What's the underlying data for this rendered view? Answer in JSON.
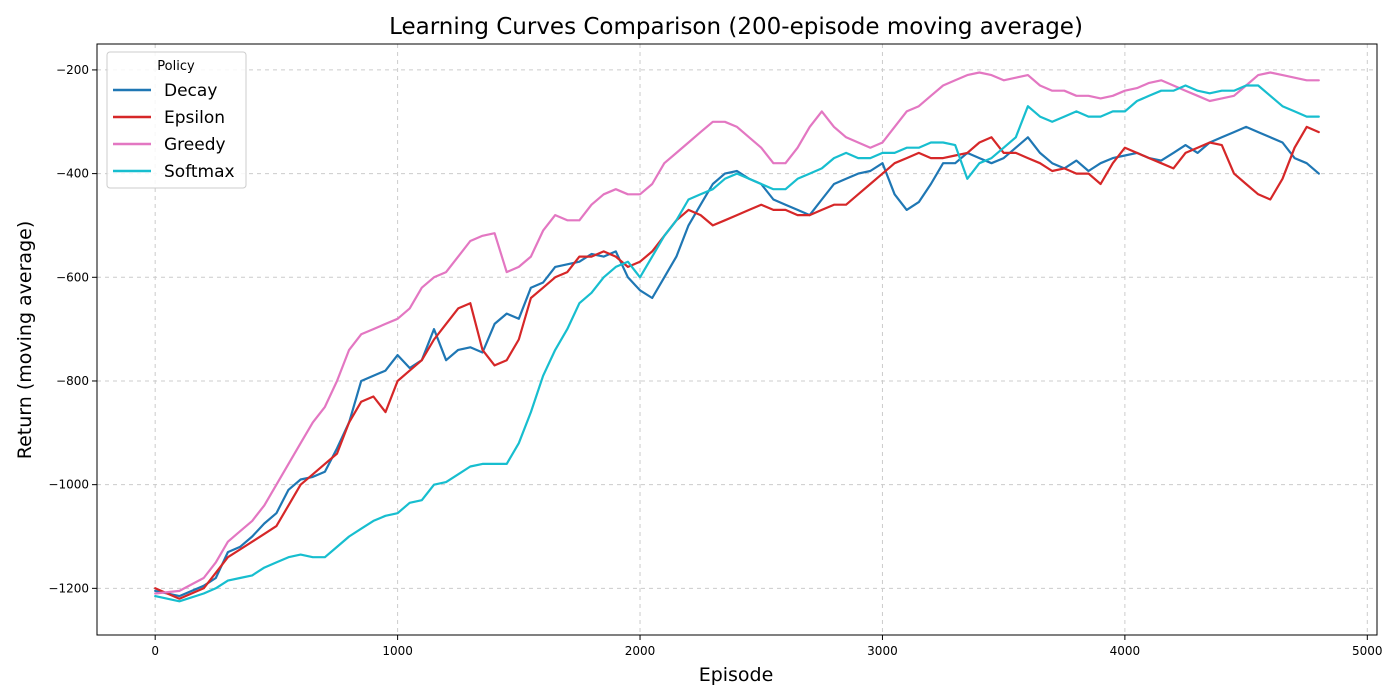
{
  "chart_data": {
    "type": "line",
    "title": "Learning Curves Comparison (200-episode moving average)",
    "xlabel": "Episode",
    "ylabel": "Return (moving average)",
    "xlim": [
      -240,
      5040
    ],
    "ylim": [
      -1290,
      -150
    ],
    "xticks": [
      0,
      1000,
      2000,
      3000,
      4000,
      5000
    ],
    "xtick_labels": [
      "0",
      "1000",
      "2000",
      "3000",
      "4000",
      "5000"
    ],
    "yticks": [
      -1200,
      -1000,
      -800,
      -600,
      -400,
      -200
    ],
    "ytick_labels": [
      "−1200",
      "−1000",
      "−800",
      "−600",
      "−400",
      "−200"
    ],
    "grid": true,
    "legend": {
      "title": "Policy",
      "position": "top-left"
    },
    "series": [
      {
        "name": "Decay",
        "color": "#1f77b4",
        "x": [
          0,
          100,
          200,
          250,
          300,
          350,
          400,
          450,
          500,
          550,
          600,
          650,
          700,
          750,
          800,
          850,
          900,
          950,
          1000,
          1050,
          1100,
          1150,
          1200,
          1250,
          1300,
          1350,
          1400,
          1450,
          1500,
          1550,
          1600,
          1650,
          1700,
          1750,
          1800,
          1850,
          1900,
          1950,
          2000,
          2050,
          2100,
          2150,
          2200,
          2250,
          2300,
          2350,
          2400,
          2450,
          2500,
          2550,
          2600,
          2650,
          2700,
          2750,
          2800,
          2850,
          2900,
          2950,
          3000,
          3050,
          3100,
          3150,
          3200,
          3250,
          3300,
          3350,
          3400,
          3450,
          3500,
          3550,
          3600,
          3650,
          3700,
          3750,
          3800,
          3850,
          3900,
          3950,
          4000,
          4050,
          4100,
          4150,
          4200,
          4250,
          4300,
          4350,
          4400,
          4450,
          4500,
          4550,
          4600,
          4650,
          4700,
          4750,
          4800
        ],
        "y": [
          -1205,
          -1215,
          -1195,
          -1180,
          -1130,
          -1120,
          -1100,
          -1075,
          -1055,
          -1010,
          -990,
          -985,
          -975,
          -930,
          -880,
          -800,
          -790,
          -780,
          -750,
          -775,
          -760,
          -700,
          -760,
          -740,
          -735,
          -745,
          -690,
          -670,
          -680,
          -620,
          -610,
          -580,
          -575,
          -570,
          -555,
          -560,
          -550,
          -600,
          -625,
          -640,
          -600,
          -560,
          -500,
          -460,
          -420,
          -400,
          -395,
          -410,
          -420,
          -450,
          -460,
          -470,
          -480,
          -450,
          -420,
          -410,
          -400,
          -395,
          -380,
          -440,
          -470,
          -455,
          -420,
          -380,
          -380,
          -360,
          -370,
          -380,
          -370,
          -350,
          -330,
          -360,
          -380,
          -390,
          -375,
          -395,
          -380,
          -370,
          -365,
          -360,
          -370,
          -375,
          -360,
          -345,
          -360,
          -340,
          -330,
          -320,
          -310,
          -320,
          -330,
          -340,
          -370,
          -380,
          -400
        ]
      },
      {
        "name": "Epsilon",
        "color": "#d62728",
        "x": [
          0,
          100,
          200,
          250,
          300,
          350,
          400,
          450,
          500,
          550,
          600,
          650,
          700,
          750,
          800,
          850,
          900,
          950,
          1000,
          1050,
          1100,
          1150,
          1200,
          1250,
          1300,
          1350,
          1400,
          1450,
          1500,
          1550,
          1600,
          1650,
          1700,
          1750,
          1800,
          1850,
          1900,
          1950,
          2000,
          2050,
          2100,
          2150,
          2200,
          2250,
          2300,
          2350,
          2400,
          2450,
          2500,
          2550,
          2600,
          2650,
          2700,
          2750,
          2800,
          2850,
          2900,
          2950,
          3000,
          3050,
          3100,
          3150,
          3200,
          3250,
          3300,
          3350,
          3400,
          3450,
          3500,
          3550,
          3600,
          3650,
          3700,
          3750,
          3800,
          3850,
          3900,
          3950,
          4000,
          4050,
          4100,
          4150,
          4200,
          4250,
          4300,
          4350,
          4400,
          4450,
          4500,
          4550,
          4600,
          4650,
          4700,
          4750,
          4800
        ],
        "y": [
          -1200,
          -1220,
          -1200,
          -1170,
          -1140,
          -1125,
          -1110,
          -1095,
          -1080,
          -1040,
          -1000,
          -980,
          -960,
          -940,
          -880,
          -840,
          -830,
          -860,
          -800,
          -780,
          -760,
          -720,
          -690,
          -660,
          -650,
          -740,
          -770,
          -760,
          -720,
          -640,
          -620,
          -600,
          -590,
          -560,
          -560,
          -550,
          -560,
          -580,
          -570,
          -550,
          -520,
          -490,
          -470,
          -480,
          -500,
          -490,
          -480,
          -470,
          -460,
          -470,
          -470,
          -480,
          -480,
          -470,
          -460,
          -460,
          -440,
          -420,
          -400,
          -380,
          -370,
          -360,
          -370,
          -370,
          -365,
          -360,
          -340,
          -330,
          -360,
          -360,
          -370,
          -380,
          -395,
          -390,
          -400,
          -400,
          -420,
          -380,
          -350,
          -360,
          -370,
          -380,
          -390,
          -360,
          -350,
          -340,
          -345,
          -400,
          -420,
          -440,
          -450,
          -410,
          -350,
          -310,
          -320
        ]
      },
      {
        "name": "Greedy",
        "color": "#e377c2",
        "x": [
          0,
          100,
          200,
          250,
          300,
          350,
          400,
          450,
          500,
          550,
          600,
          650,
          700,
          750,
          800,
          850,
          900,
          950,
          1000,
          1050,
          1100,
          1150,
          1200,
          1250,
          1300,
          1350,
          1400,
          1450,
          1500,
          1550,
          1600,
          1650,
          1700,
          1750,
          1800,
          1850,
          1900,
          1950,
          2000,
          2050,
          2100,
          2150,
          2200,
          2250,
          2300,
          2350,
          2400,
          2450,
          2500,
          2550,
          2600,
          2650,
          2700,
          2750,
          2800,
          2850,
          2900,
          2950,
          3000,
          3050,
          3100,
          3150,
          3200,
          3250,
          3300,
          3350,
          3400,
          3450,
          3500,
          3550,
          3600,
          3650,
          3700,
          3750,
          3800,
          3850,
          3900,
          3950,
          4000,
          4050,
          4100,
          4150,
          4200,
          4250,
          4300,
          4350,
          4400,
          4450,
          4500,
          4550,
          4600,
          4650,
          4700,
          4750,
          4800
        ],
        "y": [
          -1210,
          -1205,
          -1180,
          -1150,
          -1110,
          -1090,
          -1070,
          -1040,
          -1000,
          -960,
          -920,
          -880,
          -850,
          -800,
          -740,
          -710,
          -700,
          -690,
          -680,
          -660,
          -620,
          -600,
          -590,
          -560,
          -530,
          -520,
          -515,
          -590,
          -580,
          -560,
          -510,
          -480,
          -490,
          -490,
          -460,
          -440,
          -430,
          -440,
          -440,
          -420,
          -380,
          -360,
          -340,
          -320,
          -300,
          -300,
          -310,
          -330,
          -350,
          -380,
          -380,
          -350,
          -310,
          -280,
          -310,
          -330,
          -340,
          -350,
          -340,
          -310,
          -280,
          -270,
          -250,
          -230,
          -220,
          -210,
          -205,
          -210,
          -220,
          -215,
          -210,
          -230,
          -240,
          -240,
          -250,
          -250,
          -255,
          -250,
          -240,
          -235,
          -225,
          -220,
          -230,
          -240,
          -250,
          -260,
          -255,
          -250,
          -230,
          -210,
          -205,
          -210,
          -215,
          -220,
          -220
        ]
      },
      {
        "name": "Softmax",
        "color": "#17becf",
        "x": [
          0,
          100,
          200,
          250,
          300,
          350,
          400,
          450,
          500,
          550,
          600,
          650,
          700,
          750,
          800,
          850,
          900,
          950,
          1000,
          1050,
          1100,
          1150,
          1200,
          1250,
          1300,
          1350,
          1400,
          1450,
          1500,
          1550,
          1600,
          1650,
          1700,
          1750,
          1800,
          1850,
          1900,
          1950,
          2000,
          2050,
          2100,
          2150,
          2200,
          2250,
          2300,
          2350,
          2400,
          2450,
          2500,
          2550,
          2600,
          2650,
          2700,
          2750,
          2800,
          2850,
          2900,
          2950,
          3000,
          3050,
          3100,
          3150,
          3200,
          3250,
          3300,
          3350,
          3400,
          3450,
          3500,
          3550,
          3600,
          3650,
          3700,
          3750,
          3800,
          3850,
          3900,
          3950,
          4000,
          4050,
          4100,
          4150,
          4200,
          4250,
          4300,
          4350,
          4400,
          4450,
          4500,
          4550,
          4600,
          4650,
          4700,
          4750,
          4800
        ],
        "y": [
          -1215,
          -1225,
          -1210,
          -1200,
          -1185,
          -1180,
          -1175,
          -1160,
          -1150,
          -1140,
          -1135,
          -1140,
          -1140,
          -1120,
          -1100,
          -1085,
          -1070,
          -1060,
          -1055,
          -1035,
          -1030,
          -1000,
          -995,
          -980,
          -965,
          -960,
          -960,
          -960,
          -920,
          -860,
          -790,
          -740,
          -700,
          -650,
          -630,
          -600,
          -580,
          -570,
          -600,
          -560,
          -520,
          -490,
          -450,
          -440,
          -430,
          -410,
          -400,
          -410,
          -420,
          -430,
          -430,
          -410,
          -400,
          -390,
          -370,
          -360,
          -370,
          -370,
          -360,
          -360,
          -350,
          -350,
          -340,
          -340,
          -345,
          -410,
          -380,
          -370,
          -350,
          -330,
          -270,
          -290,
          -300,
          -290,
          -280,
          -290,
          -290,
          -280,
          -280,
          -260,
          -250,
          -240,
          -240,
          -230,
          -240,
          -245,
          -240,
          -240,
          -230,
          -230,
          -250,
          -270,
          -280,
          -290,
          -290
        ]
      }
    ]
  }
}
